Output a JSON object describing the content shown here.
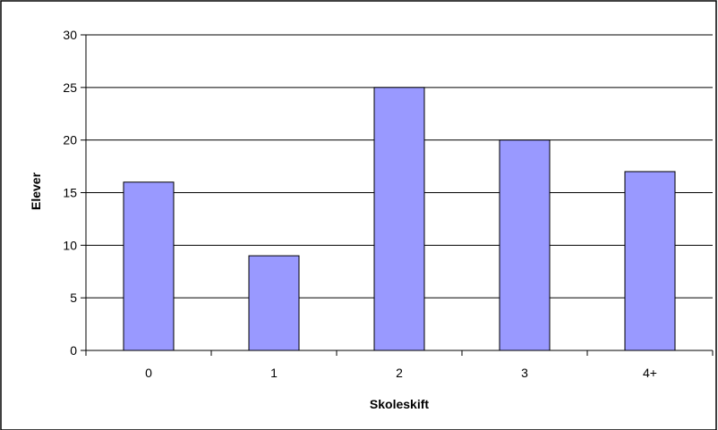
{
  "chart_data": {
    "type": "bar",
    "categories": [
      "0",
      "1",
      "2",
      "3",
      "4+"
    ],
    "values": [
      16,
      9,
      25,
      20,
      17
    ],
    "title": "",
    "xlabel": "Skoleskift",
    "ylabel": "Elever",
    "ylim": [
      0,
      30
    ],
    "yticks": [
      0,
      5,
      10,
      15,
      20,
      25,
      30
    ],
    "grid": true,
    "bar_color": "#9999ff",
    "bar_edge_color": "#000000"
  }
}
